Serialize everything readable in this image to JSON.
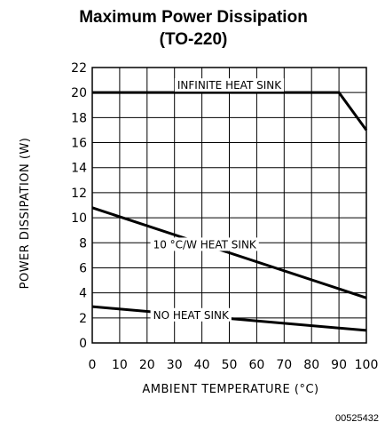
{
  "chart_data": {
    "type": "line",
    "title": "Maximum Power Dissipation",
    "subtitle": "(TO-220)",
    "xlabel": "AMBIENT TEMPERATURE (°C)",
    "ylabel": "POWER DISSIPATION (W)",
    "xlim": [
      0,
      100
    ],
    "ylim": [
      0,
      22
    ],
    "x_ticks": [
      0,
      10,
      20,
      30,
      40,
      50,
      60,
      70,
      80,
      90,
      100
    ],
    "y_ticks": [
      0,
      2,
      4,
      6,
      8,
      10,
      12,
      14,
      16,
      18,
      20,
      22
    ],
    "grid": true,
    "series": [
      {
        "name": "INFINITE HEAT SINK",
        "x": [
          0,
          90,
          100
        ],
        "y": [
          20,
          20,
          17
        ]
      },
      {
        "name": "10 °C/W HEAT SINK",
        "x": [
          0,
          100
        ],
        "y": [
          10.8,
          3.6
        ]
      },
      {
        "name": "NO HEAT SINK",
        "x": [
          0,
          100
        ],
        "y": [
          2.9,
          1.0
        ]
      }
    ]
  },
  "reference_number": "00525432"
}
